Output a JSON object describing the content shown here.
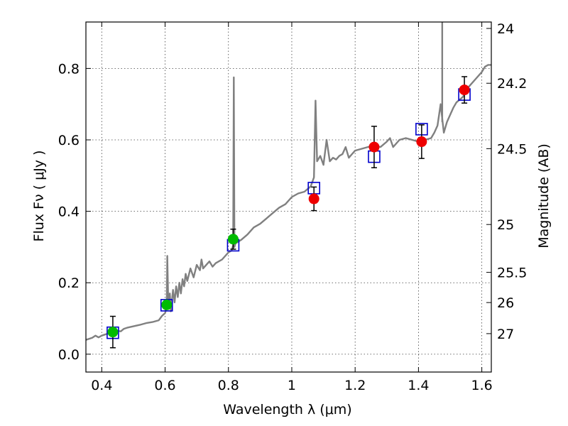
{
  "chart_data": {
    "type": "scatter",
    "xlabel": "Wavelength  λ (μm)",
    "ylabel": "Flux  Fν  ( μJy )",
    "ylabel_right": "Magnitude (AB)",
    "xlim": [
      0.35,
      1.63
    ],
    "ylim": [
      -0.05,
      0.93
    ],
    "grid": true,
    "x_ticks": [
      {
        "value": 0.4,
        "label": "0.4"
      },
      {
        "value": 0.6,
        "label": "0.6"
      },
      {
        "value": 0.8,
        "label": "0.8"
      },
      {
        "value": 1.0,
        "label": "1"
      },
      {
        "value": 1.2,
        "label": "1.2"
      },
      {
        "value": 1.4,
        "label": "1.4"
      },
      {
        "value": 1.6,
        "label": "1.6"
      }
    ],
    "y_ticks": [
      {
        "value": 0.0,
        "label": "0.0"
      },
      {
        "value": 0.2,
        "label": "0.2"
      },
      {
        "value": 0.4,
        "label": "0.4"
      },
      {
        "value": 0.6,
        "label": "0.6"
      },
      {
        "value": 0.8,
        "label": "0.8"
      }
    ],
    "right_ticks": [
      {
        "value": 24,
        "label": "24"
      },
      {
        "value": 24.2,
        "label": "24.2"
      },
      {
        "value": 24.5,
        "label": "24.5"
      },
      {
        "value": 25,
        "label": "25"
      },
      {
        "value": 25.5,
        "label": "25.5"
      },
      {
        "value": 26,
        "label": "26"
      },
      {
        "value": 27,
        "label": "27"
      }
    ],
    "series": [
      {
        "kind": "line",
        "color": "#808080",
        "points": [
          [
            0.35,
            0.04
          ],
          [
            0.37,
            0.046
          ],
          [
            0.38,
            0.052
          ],
          [
            0.39,
            0.047
          ],
          [
            0.4,
            0.052
          ],
          [
            0.41,
            0.055
          ],
          [
            0.42,
            0.058
          ],
          [
            0.43,
            0.06
          ],
          [
            0.45,
            0.065
          ],
          [
            0.46,
            0.064
          ],
          [
            0.47,
            0.071
          ],
          [
            0.48,
            0.074
          ],
          [
            0.5,
            0.078
          ],
          [
            0.52,
            0.082
          ],
          [
            0.54,
            0.087
          ],
          [
            0.56,
            0.09
          ],
          [
            0.58,
            0.095
          ],
          [
            0.59,
            0.107
          ],
          [
            0.6,
            0.115
          ],
          [
            0.605,
            0.13
          ],
          [
            0.607,
            0.275
          ],
          [
            0.61,
            0.14
          ],
          [
            0.615,
            0.17
          ],
          [
            0.618,
            0.12
          ],
          [
            0.625,
            0.18
          ],
          [
            0.63,
            0.145
          ],
          [
            0.635,
            0.19
          ],
          [
            0.64,
            0.16
          ],
          [
            0.645,
            0.2
          ],
          [
            0.65,
            0.17
          ],
          [
            0.655,
            0.21
          ],
          [
            0.66,
            0.19
          ],
          [
            0.665,
            0.225
          ],
          [
            0.67,
            0.205
          ],
          [
            0.68,
            0.24
          ],
          [
            0.69,
            0.215
          ],
          [
            0.7,
            0.25
          ],
          [
            0.71,
            0.235
          ],
          [
            0.715,
            0.265
          ],
          [
            0.72,
            0.24
          ],
          [
            0.73,
            0.25
          ],
          [
            0.74,
            0.26
          ],
          [
            0.75,
            0.245
          ],
          [
            0.76,
            0.255
          ],
          [
            0.78,
            0.265
          ],
          [
            0.8,
            0.285
          ],
          [
            0.81,
            0.29
          ],
          [
            0.815,
            0.305
          ],
          [
            0.817,
            0.775
          ],
          [
            0.819,
            0.3
          ],
          [
            0.822,
            0.31
          ],
          [
            0.84,
            0.32
          ],
          [
            0.86,
            0.335
          ],
          [
            0.88,
            0.355
          ],
          [
            0.9,
            0.365
          ],
          [
            0.92,
            0.38
          ],
          [
            0.94,
            0.395
          ],
          [
            0.96,
            0.41
          ],
          [
            0.98,
            0.42
          ],
          [
            1.0,
            0.44
          ],
          [
            1.02,
            0.45
          ],
          [
            1.04,
            0.455
          ],
          [
            1.06,
            0.47
          ],
          [
            1.07,
            0.495
          ],
          [
            1.075,
            0.71
          ],
          [
            1.08,
            0.54
          ],
          [
            1.09,
            0.555
          ],
          [
            1.1,
            0.53
          ],
          [
            1.11,
            0.6
          ],
          [
            1.12,
            0.54
          ],
          [
            1.13,
            0.55
          ],
          [
            1.14,
            0.545
          ],
          [
            1.15,
            0.555
          ],
          [
            1.16,
            0.56
          ],
          [
            1.17,
            0.58
          ],
          [
            1.18,
            0.55
          ],
          [
            1.19,
            0.56
          ],
          [
            1.2,
            0.57
          ],
          [
            1.22,
            0.575
          ],
          [
            1.24,
            0.58
          ],
          [
            1.26,
            0.585
          ],
          [
            1.28,
            0.58
          ],
          [
            1.3,
            0.595
          ],
          [
            1.31,
            0.605
          ],
          [
            1.32,
            0.58
          ],
          [
            1.33,
            0.59
          ],
          [
            1.34,
            0.6
          ],
          [
            1.36,
            0.605
          ],
          [
            1.38,
            0.6
          ],
          [
            1.4,
            0.595
          ],
          [
            1.42,
            0.6
          ],
          [
            1.44,
            0.605
          ],
          [
            1.45,
            0.62
          ],
          [
            1.46,
            0.64
          ],
          [
            1.47,
            0.7
          ],
          [
            1.48,
            0.62
          ],
          [
            1.49,
            0.65
          ],
          [
            1.5,
            0.67
          ],
          [
            1.51,
            0.69
          ],
          [
            1.52,
            0.705
          ],
          [
            1.54,
            0.72
          ],
          [
            1.56,
            0.75
          ],
          [
            1.58,
            0.77
          ],
          [
            1.6,
            0.79
          ],
          [
            1.61,
            0.805
          ],
          [
            1.62,
            0.81
          ],
          [
            1.63,
            0.81
          ]
        ],
        "spikes": [
          [
            1.475,
            0.93
          ]
        ]
      },
      {
        "kind": "open-square",
        "color": "#0000cc",
        "points": [
          [
            0.435,
            0.06
          ],
          [
            0.605,
            0.137
          ],
          [
            0.815,
            0.305
          ],
          [
            1.07,
            0.465
          ],
          [
            1.26,
            0.553
          ],
          [
            1.41,
            0.63
          ],
          [
            1.545,
            0.727
          ]
        ]
      },
      {
        "kind": "filled-circle",
        "color": "#00bb00",
        "points": [
          [
            0.435,
            0.062
          ],
          [
            0.605,
            0.138
          ],
          [
            0.815,
            0.322
          ]
        ],
        "errors": [
          0.044,
          null,
          0.028
        ]
      },
      {
        "kind": "filled-circle",
        "color": "#ee0000",
        "points": [
          [
            1.07,
            0.435
          ],
          [
            1.26,
            0.58
          ],
          [
            1.41,
            0.595
          ],
          [
            1.545,
            0.74
          ]
        ],
        "errors": [
          0.033,
          0.058,
          0.047,
          0.037
        ]
      }
    ]
  }
}
